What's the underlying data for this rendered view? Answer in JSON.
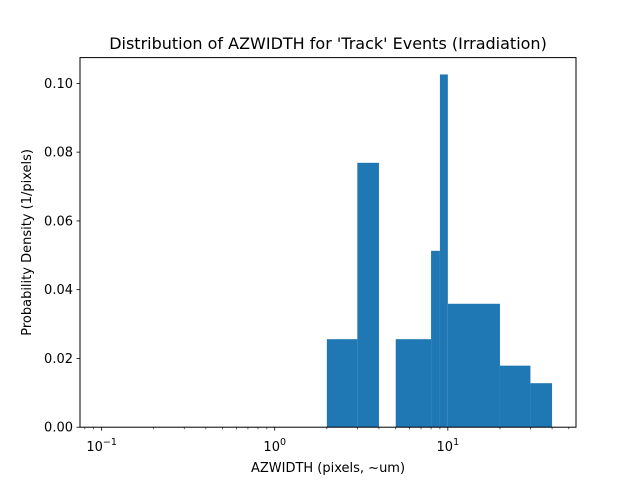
{
  "chart_data": {
    "type": "bar",
    "title": "Distribution of AZWIDTH for 'Track' Events (Irradiation)",
    "xlabel": "AZWIDTH (pixels, ~um)",
    "ylabel": "Probability Density (1/pixels)",
    "x_scale": "log",
    "xlim": [
      0.075,
      55
    ],
    "ylim": [
      0,
      0.1075
    ],
    "grid": false,
    "legend": "none",
    "bar_color": "#1f77b4",
    "x_ticks": [
      {
        "value": 0.1,
        "base": "10",
        "exp": "−1"
      },
      {
        "value": 1,
        "base": "10",
        "exp": "0"
      },
      {
        "value": 10,
        "base": "10",
        "exp": "1"
      }
    ],
    "y_ticks": [
      {
        "value": 0.0,
        "label": "0.00"
      },
      {
        "value": 0.02,
        "label": "0.02"
      },
      {
        "value": 0.04,
        "label": "0.04"
      },
      {
        "value": 0.06,
        "label": "0.06"
      },
      {
        "value": 0.08,
        "label": "0.08"
      },
      {
        "value": 0.1,
        "label": "0.10"
      }
    ],
    "bins": [
      {
        "x0": 2.0,
        "x1": 3.0,
        "value": 0.0256
      },
      {
        "x0": 3.0,
        "x1": 4.0,
        "value": 0.0769
      },
      {
        "x0": 5.0,
        "x1": 8.0,
        "value": 0.0256
      },
      {
        "x0": 8.0,
        "x1": 9.0,
        "value": 0.0513
      },
      {
        "x0": 9.0,
        "x1": 10.0,
        "value": 0.1026
      },
      {
        "x0": 10.0,
        "x1": 20.0,
        "value": 0.0359
      },
      {
        "x0": 20.0,
        "x1": 30.0,
        "value": 0.0179
      },
      {
        "x0": 30.0,
        "x1": 40.0,
        "value": 0.0128
      }
    ]
  }
}
